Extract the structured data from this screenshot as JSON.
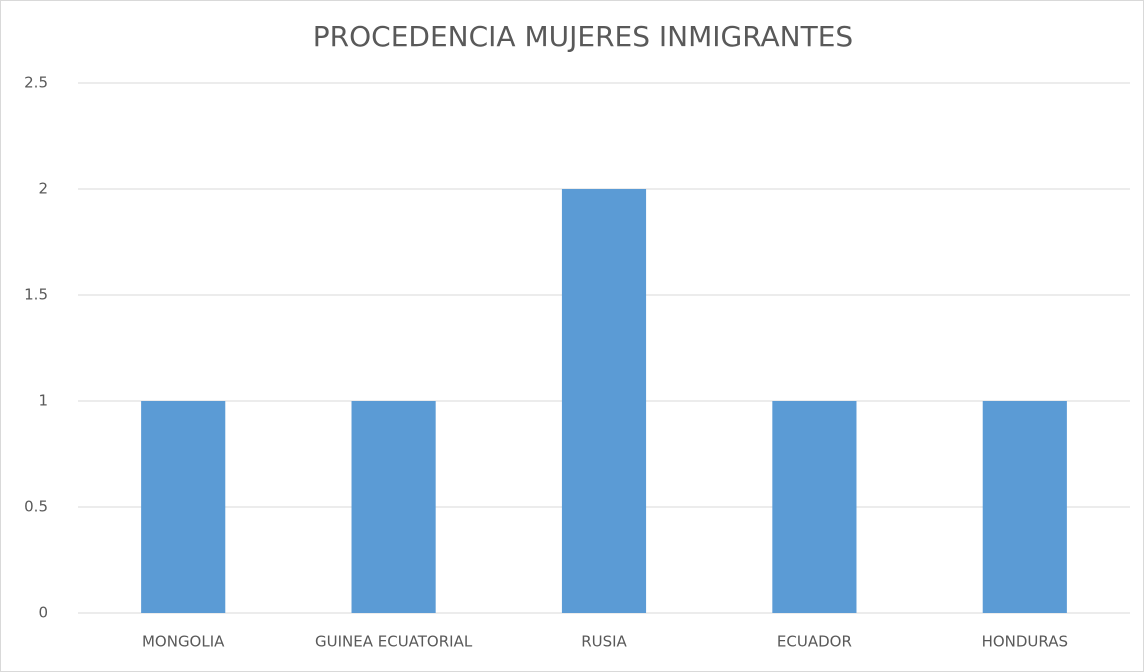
{
  "chart_data": {
    "type": "bar",
    "title": "PROCEDENCIA MUJERES INMIGRANTES",
    "categories": [
      "MONGOLIA",
      "GUINEA ECUATORIAL",
      "RUSIA",
      "ECUADOR",
      "HONDURAS"
    ],
    "values": [
      1,
      1,
      2,
      1,
      1
    ],
    "color": "#5b9bd5",
    "ylim": [
      0,
      2.5
    ],
    "yticks": [
      0,
      0.5,
      1,
      1.5,
      2,
      2.5
    ],
    "grid": true
  }
}
